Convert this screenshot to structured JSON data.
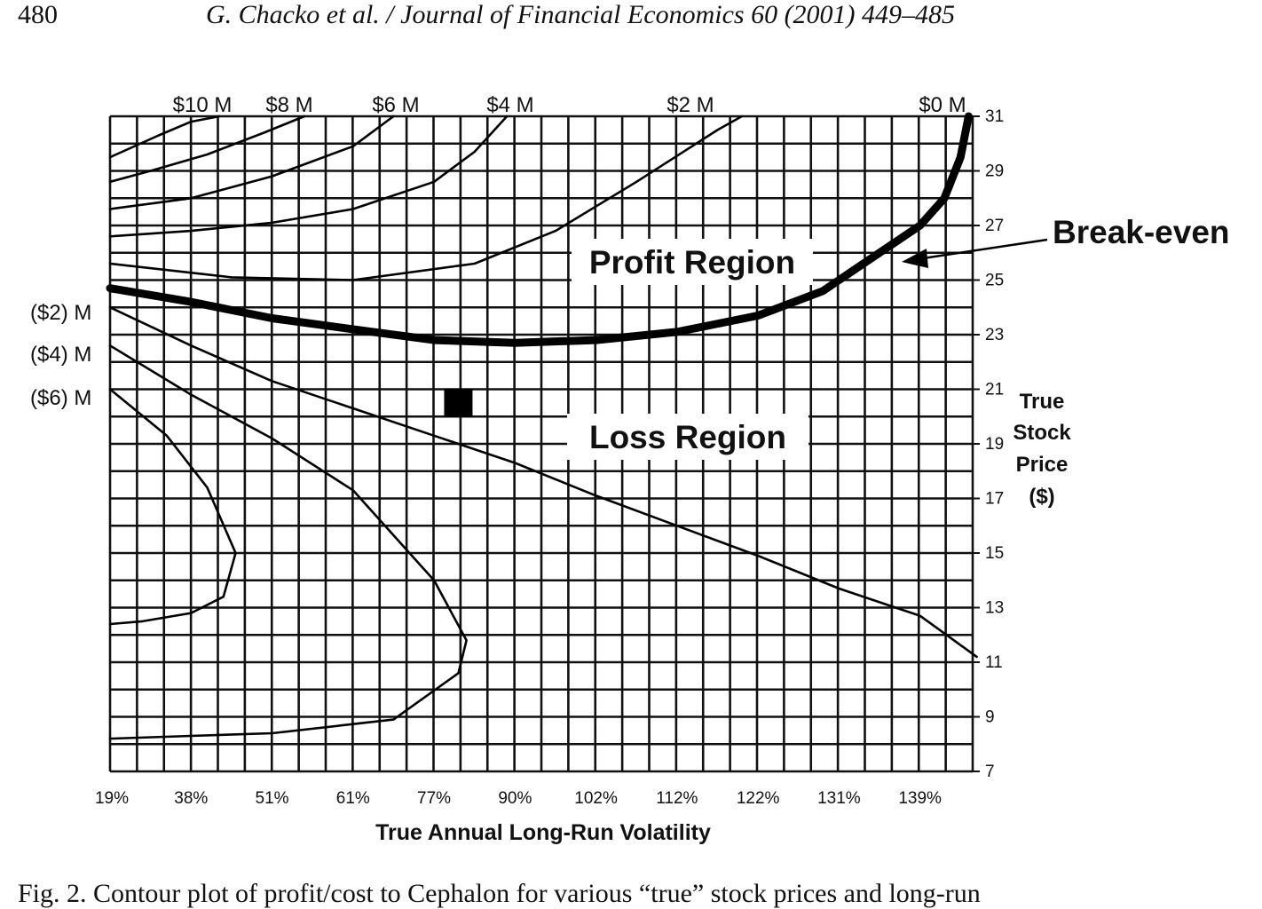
{
  "page": {
    "page_number": "480",
    "running_head": "G. Chacko et al. / Journal of Financial Economics 60 (2001) 449–485",
    "caption": "Fig. 2. Contour plot of profit/cost to Cephalon for various “true” stock prices and long-run"
  },
  "chart_data": {
    "type": "contour",
    "title": "",
    "xlabel": "True Annual Long-Run Volatility",
    "ylabel": [
      "True",
      "Stock",
      "Price",
      "($)"
    ],
    "x_tick_labels": [
      "19%",
      "38%",
      "51%",
      "61%",
      "77%",
      "90%",
      "102%",
      "112%",
      "122%",
      "131%",
      "139%"
    ],
    "y_ticks": [
      7,
      9,
      11,
      13,
      15,
      17,
      19,
      21,
      23,
      25,
      27,
      29,
      31
    ],
    "ylim": [
      7,
      31
    ],
    "grid": true,
    "region_labels": [
      "Profit Region",
      "Loss Region"
    ],
    "annotation": "Break-even",
    "marker": {
      "x_index": 4.3,
      "y": 20.5
    },
    "contours": [
      {
        "name": "$10 M",
        "label_position": "top",
        "points": [
          [
            0,
            29.5
          ],
          [
            0.6,
            30.3
          ],
          [
            1.0,
            30.8
          ],
          [
            1.35,
            31
          ]
        ]
      },
      {
        "name": "$8 M",
        "label_position": "top",
        "points": [
          [
            0,
            28.6
          ],
          [
            0.5,
            29.0
          ],
          [
            1.2,
            29.6
          ],
          [
            1.9,
            30.4
          ],
          [
            2.4,
            31
          ]
        ]
      },
      {
        "name": "$6 M",
        "label_position": "top",
        "points": [
          [
            0,
            27.6
          ],
          [
            1.0,
            28.0
          ],
          [
            2.0,
            28.8
          ],
          [
            3.0,
            29.9
          ],
          [
            3.5,
            31
          ]
        ]
      },
      {
        "name": "$4 M",
        "label_position": "top",
        "points": [
          [
            0,
            26.6
          ],
          [
            1.0,
            26.8
          ],
          [
            2.0,
            27.1
          ],
          [
            3.0,
            27.6
          ],
          [
            4.0,
            28.6
          ],
          [
            4.5,
            29.7
          ],
          [
            4.9,
            31
          ]
        ]
      },
      {
        "name": "$2 M",
        "label_position": "top",
        "points": [
          [
            0,
            25.6
          ],
          [
            1.5,
            25.1
          ],
          [
            3.0,
            25.0
          ],
          [
            4.5,
            25.6
          ],
          [
            5.5,
            26.8
          ],
          [
            6.5,
            28.6
          ],
          [
            7.5,
            30.5
          ],
          [
            7.8,
            31
          ]
        ]
      },
      {
        "name": "$0 M",
        "label_position": "top",
        "break_even": true,
        "points": [
          [
            0,
            24.7
          ],
          [
            1.0,
            24.2
          ],
          [
            2.0,
            23.6
          ],
          [
            3.0,
            23.2
          ],
          [
            4.0,
            22.8
          ],
          [
            5.0,
            22.7
          ],
          [
            6.0,
            22.8
          ],
          [
            7.0,
            23.1
          ],
          [
            8.0,
            23.7
          ],
          [
            8.8,
            24.6
          ],
          [
            9.4,
            25.8
          ],
          [
            10.0,
            27.0
          ],
          [
            10.3,
            28.0
          ],
          [
            10.5,
            29.5
          ],
          [
            10.6,
            31
          ]
        ]
      },
      {
        "name": "($2) M",
        "label_position": "left",
        "points": [
          [
            0,
            24.0
          ],
          [
            1.0,
            22.6
          ],
          [
            2.0,
            21.3
          ],
          [
            3.0,
            20.3
          ],
          [
            4.0,
            19.3
          ],
          [
            5.0,
            18.3
          ],
          [
            6.0,
            17.1
          ],
          [
            7.0,
            16.0
          ],
          [
            8.0,
            14.9
          ],
          [
            9.0,
            13.7
          ],
          [
            10.0,
            12.7
          ],
          [
            10.7,
            11.2
          ]
        ]
      },
      {
        "name": "($4) M",
        "label_position": "left",
        "points": [
          [
            0,
            22.6
          ],
          [
            1.0,
            20.8
          ],
          [
            2.0,
            19.2
          ],
          [
            3.0,
            17.3
          ],
          [
            4.0,
            14.0
          ],
          [
            4.4,
            11.8
          ],
          [
            4.3,
            10.6
          ],
          [
            3.5,
            8.9
          ],
          [
            2.0,
            8.4
          ],
          [
            1.0,
            8.3
          ],
          [
            0,
            8.2
          ]
        ]
      },
      {
        "name": "($6) M",
        "label_position": "left",
        "points": [
          [
            0,
            21.0
          ],
          [
            0.7,
            19.3
          ],
          [
            1.2,
            17.4
          ],
          [
            1.55,
            15.0
          ],
          [
            1.4,
            13.4
          ],
          [
            1.0,
            12.8
          ],
          [
            0.4,
            12.5
          ],
          [
            0,
            12.4
          ]
        ]
      }
    ]
  }
}
